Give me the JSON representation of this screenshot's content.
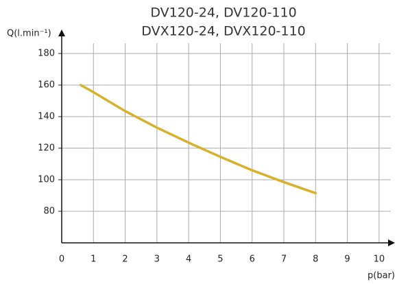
{
  "chart_data": {
    "type": "line",
    "title": [
      "DV120-24, DV120-110",
      "DVX120-24, DVX120-110"
    ],
    "y_label": "Q(l.min⁻¹)",
    "x_label": "p(bar)",
    "x": [
      0.6,
      1,
      2,
      3,
      4,
      5,
      6,
      7,
      8
    ],
    "series": [
      {
        "name": null,
        "color": "#d6b12b",
        "values": [
          160,
          155.5,
          143.5,
          133,
          123.5,
          114.5,
          106,
          98.5,
          91.5
        ]
      }
    ],
    "xlim": [
      0,
      10.5
    ],
    "xticks": [
      0,
      1,
      2,
      3,
      4,
      5,
      6,
      7,
      8,
      9,
      10
    ],
    "ylim": [
      60,
      190
    ],
    "yticks": [
      80,
      100,
      120,
      140,
      160,
      180
    ],
    "grid": true
  }
}
